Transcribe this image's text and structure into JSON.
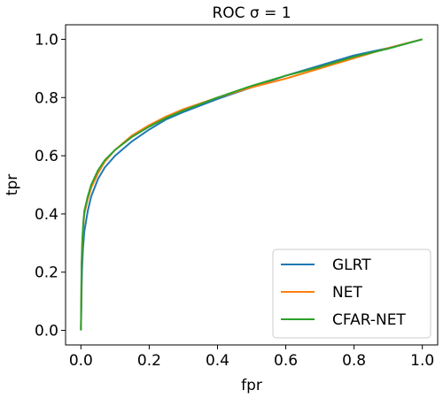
{
  "chart_data": {
    "type": "line",
    "title": "ROC σ = 1",
    "xlabel": "fpr",
    "ylabel": "tpr",
    "xlim": [
      -0.045,
      1.045
    ],
    "ylim": [
      -0.05,
      1.05
    ],
    "xticks": [
      0.0,
      0.2,
      0.4,
      0.6,
      0.8,
      1.0
    ],
    "yticks": [
      0.0,
      0.2,
      0.4,
      0.6,
      0.8,
      1.0
    ],
    "xtick_labels": [
      "0.0",
      "0.2",
      "0.4",
      "0.6",
      "0.8",
      "1.0"
    ],
    "ytick_labels": [
      "0.0",
      "0.2",
      "0.4",
      "0.6",
      "0.8",
      "1.0"
    ],
    "grid": false,
    "legend_position": "lower-right",
    "series": [
      {
        "name": "GLRT",
        "color": "#1f77b4",
        "x": [
          0,
          0.003,
          0.006,
          0.01,
          0.02,
          0.03,
          0.05,
          0.07,
          0.1,
          0.15,
          0.2,
          0.25,
          0.3,
          0.4,
          0.5,
          0.6,
          0.7,
          0.8,
          0.9,
          1.0
        ],
        "y": [
          0,
          0.2,
          0.28,
          0.34,
          0.41,
          0.46,
          0.52,
          0.56,
          0.6,
          0.65,
          0.69,
          0.725,
          0.75,
          0.795,
          0.835,
          0.875,
          0.91,
          0.945,
          0.97,
          1.0
        ]
      },
      {
        "name": "NET",
        "color": "#ff7f0e",
        "x": [
          0,
          0.002,
          0.004,
          0.007,
          0.01,
          0.02,
          0.03,
          0.05,
          0.07,
          0.1,
          0.15,
          0.2,
          0.25,
          0.3,
          0.4,
          0.5,
          0.6,
          0.7,
          0.8,
          0.9,
          1.0
        ],
        "y": [
          0,
          0.22,
          0.3,
          0.36,
          0.4,
          0.45,
          0.49,
          0.54,
          0.58,
          0.62,
          0.67,
          0.705,
          0.735,
          0.76,
          0.8,
          0.835,
          0.865,
          0.9,
          0.935,
          0.97,
          1.0
        ]
      },
      {
        "name": "CFAR-NET",
        "color": "#2ca02c",
        "x": [
          0,
          0.002,
          0.004,
          0.007,
          0.01,
          0.02,
          0.03,
          0.05,
          0.07,
          0.1,
          0.15,
          0.2,
          0.25,
          0.3,
          0.4,
          0.5,
          0.6,
          0.7,
          0.8,
          0.9,
          1.0
        ],
        "y": [
          0,
          0.23,
          0.31,
          0.37,
          0.41,
          0.46,
          0.5,
          0.55,
          0.585,
          0.62,
          0.665,
          0.7,
          0.73,
          0.755,
          0.8,
          0.84,
          0.875,
          0.905,
          0.94,
          0.968,
          1.0
        ]
      }
    ]
  }
}
